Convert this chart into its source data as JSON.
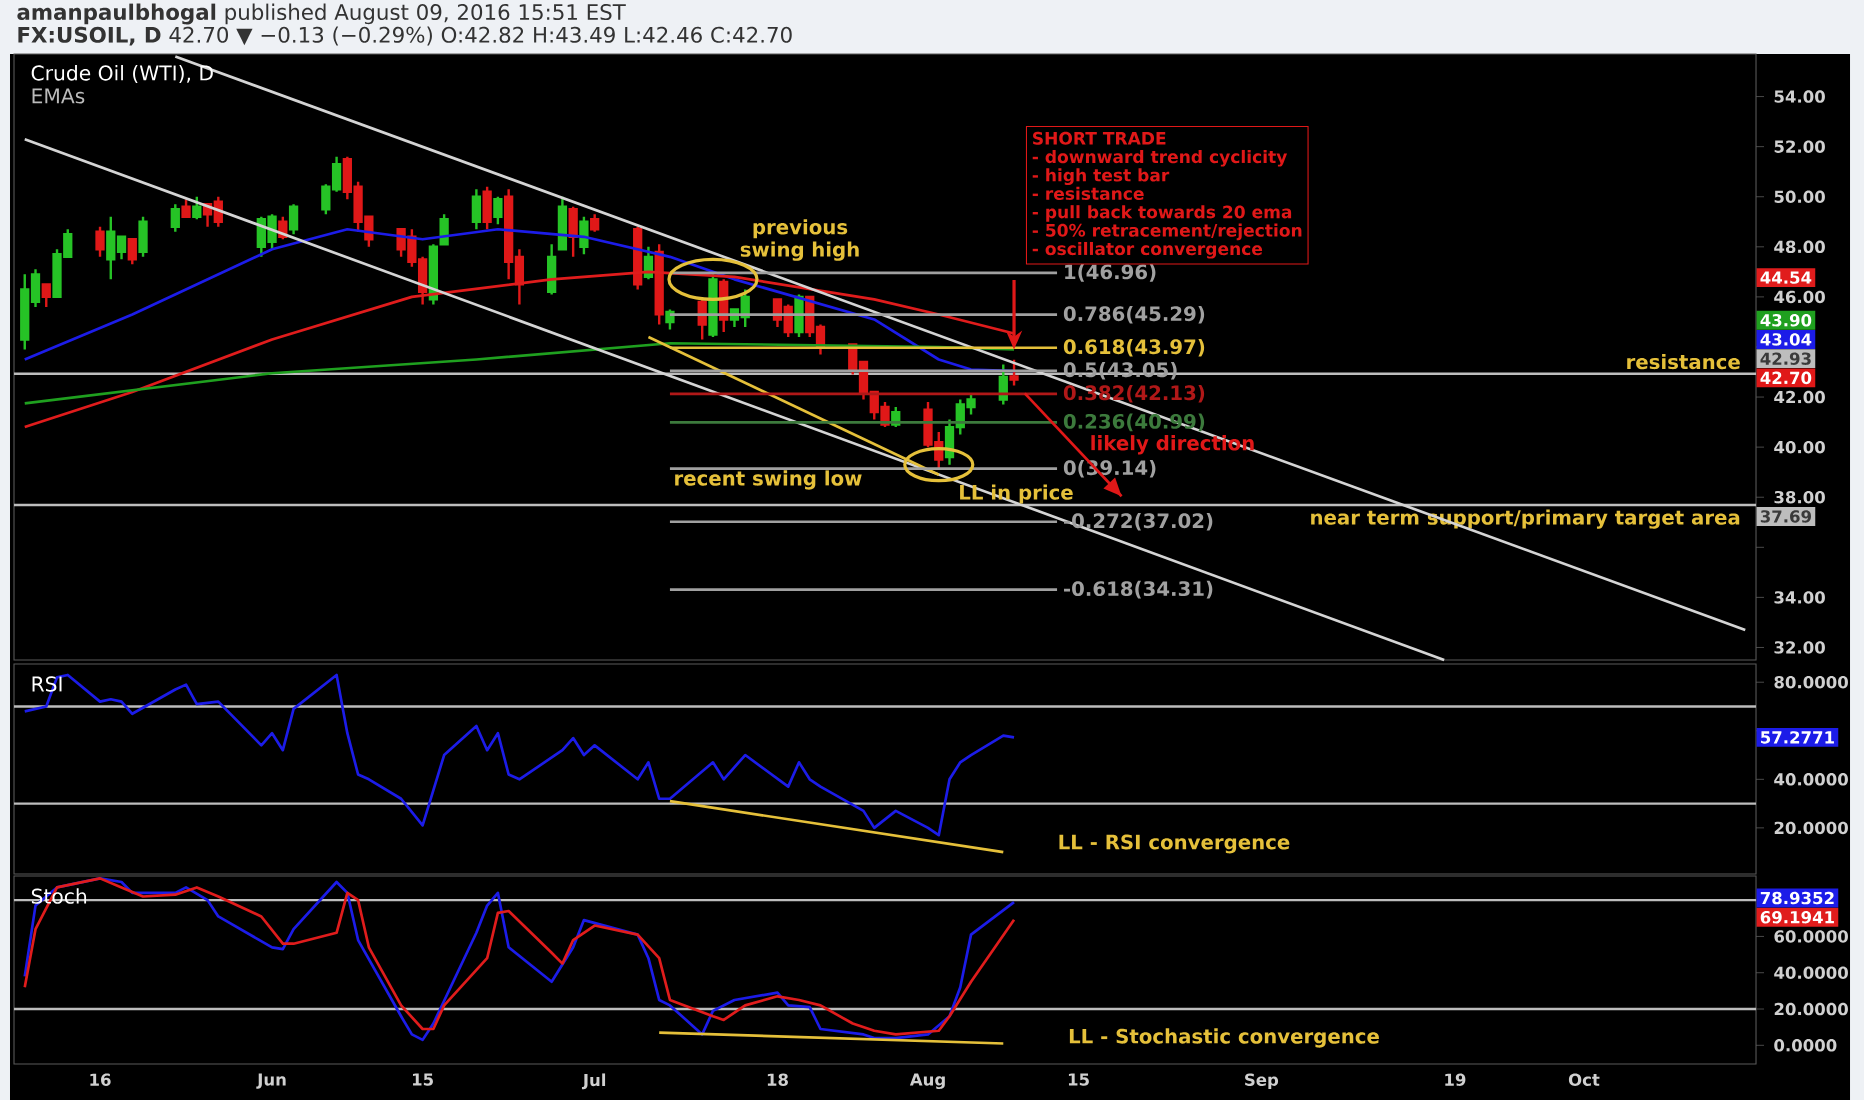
{
  "chart_data": [
    {
      "type": "candlestick",
      "title": "Crude Oil (WTI), D",
      "subtitle": "EMAs",
      "xlim": [
        "2016-05-08",
        "2016-10-17"
      ],
      "ylim": [
        31.5,
        55.7
      ],
      "tick_labels": "y",
      "yticks": [
        {
          "value": 32,
          "label": "32.00"
        },
        {
          "value": 34,
          "label": "34.00"
        },
        {
          "value": 36,
          "label": null
        },
        {
          "value": 38,
          "label": "38.00"
        },
        {
          "value": 40,
          "label": "40.00"
        },
        {
          "value": 42,
          "label": "42.00"
        },
        {
          "value": 44,
          "label": null
        },
        {
          "value": 46,
          "label": "46.00"
        },
        {
          "value": 48,
          "label": "48.00"
        },
        {
          "value": 50,
          "label": "50.00"
        },
        {
          "value": 52,
          "label": "52.00"
        },
        {
          "value": 54,
          "label": "54.00"
        }
      ],
      "series": [
        {
          "type": "candlestick",
          "x": [
            "2016-05-09",
            "2016-05-10",
            "2016-05-11",
            "2016-05-12",
            "2016-05-13",
            "2016-05-16",
            "2016-05-17",
            "2016-05-18",
            "2016-05-19",
            "2016-05-20",
            "2016-05-23",
            "2016-05-24",
            "2016-05-25",
            "2016-05-26",
            "2016-05-27",
            "2016-05-31",
            "2016-06-01",
            "2016-06-02",
            "2016-06-03",
            "2016-06-06",
            "2016-06-07",
            "2016-06-08",
            "2016-06-09",
            "2016-06-10",
            "2016-06-13",
            "2016-06-14",
            "2016-06-15",
            "2016-06-16",
            "2016-06-17",
            "2016-06-20",
            "2016-06-21",
            "2016-06-22",
            "2016-06-23",
            "2016-06-24",
            "2016-06-27",
            "2016-06-28",
            "2016-06-29",
            "2016-06-30",
            "2016-07-01",
            "2016-07-05",
            "2016-07-06",
            "2016-07-07",
            "2016-07-08",
            "2016-07-11",
            "2016-07-12",
            "2016-07-13",
            "2016-07-14",
            "2016-07-15",
            "2016-07-18",
            "2016-07-19",
            "2016-07-20",
            "2016-07-21",
            "2016-07-22",
            "2016-07-25",
            "2016-07-26",
            "2016-07-27",
            "2016-07-28",
            "2016-07-29",
            "2016-08-01",
            "2016-08-02",
            "2016-08-03",
            "2016-08-04",
            "2016-08-05",
            "2016-08-08",
            "2016-08-09"
          ],
          "ohlc": [
            [
              44.3,
              46.9,
              43.9,
              46.3
            ],
            [
              45.8,
              47.1,
              45.6,
              46.9
            ],
            [
              46.5,
              46.5,
              45.6,
              46.0
            ],
            [
              46.0,
              47.9,
              46.0,
              47.7
            ],
            [
              47.6,
              48.7,
              47.6,
              48.5
            ],
            [
              48.6,
              48.8,
              47.6,
              47.9
            ],
            [
              47.5,
              49.2,
              46.7,
              48.6
            ],
            [
              47.8,
              48.4,
              47.5,
              48.4
            ],
            [
              48.3,
              48.3,
              47.3,
              47.5
            ],
            [
              47.8,
              49.2,
              47.6,
              49.0
            ],
            [
              48.8,
              49.7,
              48.6,
              49.5
            ],
            [
              49.6,
              49.9,
              49.2,
              49.2
            ],
            [
              49.2,
              50.0,
              49.1,
              49.6
            ],
            [
              49.7,
              49.7,
              48.8,
              49.3
            ],
            [
              49.8,
              50.0,
              48.8,
              49.0
            ],
            [
              48.0,
              49.2,
              47.6,
              49.1
            ],
            [
              48.2,
              49.3,
              47.9,
              49.2
            ],
            [
              49.0,
              49.2,
              48.3,
              48.4
            ],
            [
              48.7,
              49.7,
              48.5,
              49.6
            ],
            [
              49.5,
              50.5,
              49.3,
              50.4
            ],
            [
              50.3,
              51.6,
              50.2,
              51.3
            ],
            [
              51.5,
              51.6,
              49.9,
              50.2
            ],
            [
              50.4,
              50.6,
              48.6,
              49.0
            ],
            [
              49.2,
              49.2,
              48.0,
              48.3
            ],
            [
              48.7,
              48.7,
              47.6,
              47.9
            ],
            [
              48.4,
              48.7,
              47.2,
              47.4
            ],
            [
              47.5,
              47.6,
              45.7,
              46.2
            ],
            [
              45.9,
              48.1,
              45.7,
              48.0
            ],
            [
              48.1,
              49.3,
              48.1,
              49.1
            ],
            [
              49.0,
              50.3,
              48.7,
              50.0
            ],
            [
              50.2,
              50.4,
              48.7,
              49.0
            ],
            [
              49.2,
              50.0,
              48.9,
              49.9
            ],
            [
              50.0,
              50.3,
              46.7,
              47.4
            ],
            [
              47.6,
              47.9,
              45.7,
              46.5
            ],
            [
              46.2,
              48.1,
              46.1,
              47.6
            ],
            [
              47.9,
              50.0,
              47.9,
              49.6
            ],
            [
              49.5,
              49.6,
              47.6,
              48.4
            ],
            [
              48.0,
              49.2,
              47.7,
              49.0
            ],
            [
              49.1,
              49.3,
              48.6,
              48.7
            ],
            [
              48.7,
              48.8,
              46.3,
              46.5
            ],
            [
              46.8,
              48.0,
              46.7,
              47.6
            ],
            [
              47.8,
              48.1,
              44.9,
              45.3
            ],
            [
              45.0,
              45.5,
              44.7,
              45.4
            ],
            [
              45.8,
              45.9,
              44.3,
              44.9
            ],
            [
              44.5,
              46.9,
              44.4,
              46.7
            ],
            [
              46.6,
              46.7,
              44.6,
              45.1
            ],
            [
              45.1,
              45.5,
              44.8,
              45.5
            ],
            [
              45.2,
              46.3,
              44.8,
              46.0
            ],
            [
              45.9,
              45.9,
              44.8,
              45.1
            ],
            [
              45.6,
              45.7,
              44.4,
              44.6
            ],
            [
              44.6,
              46.1,
              44.4,
              46.0
            ],
            [
              46.0,
              46.0,
              44.4,
              44.6
            ],
            [
              44.8,
              44.9,
              43.7,
              44.0
            ],
            [
              44.1,
              44.1,
              42.9,
              43.1
            ],
            [
              43.4,
              43.4,
              41.9,
              42.2
            ],
            [
              42.2,
              42.2,
              41.1,
              41.4
            ],
            [
              41.6,
              41.8,
              40.8,
              40.9
            ],
            [
              40.9,
              41.6,
              40.8,
              41.4
            ],
            [
              41.5,
              41.8,
              40.0,
              40.1
            ],
            [
              40.2,
              40.6,
              39.14,
              39.5
            ],
            [
              39.6,
              41.1,
              39.3,
              40.8
            ],
            [
              40.8,
              41.9,
              40.5,
              41.7
            ],
            [
              41.6,
              42.1,
              41.3,
              41.9
            ],
            [
              41.9,
              43.3,
              41.7,
              42.8
            ],
            [
              42.82,
              43.49,
              42.46,
              42.7
            ]
          ],
          "colors": [
            "#26c326",
            "#26c326",
            "#e01818",
            "#26c326",
            "#26c326",
            "#e01818",
            "#26c326",
            "#26c326",
            "#e01818",
            "#26c326",
            "#26c326",
            "#e01818",
            "#26c326",
            "#e01818",
            "#e01818",
            "#26c326",
            "#26c326",
            "#e01818",
            "#26c326",
            "#26c326",
            "#26c326",
            "#e01818",
            "#e01818",
            "#e01818",
            "#e01818",
            "#e01818",
            "#e01818",
            "#26c326",
            "#26c326",
            "#26c326",
            "#e01818",
            "#26c326",
            "#e01818",
            "#e01818",
            "#26c326",
            "#26c326",
            "#e01818",
            "#26c326",
            "#e01818",
            "#e01818",
            "#26c326",
            "#e01818",
            "#26c326",
            "#e01818",
            "#26c326",
            "#e01818",
            "#26c326",
            "#26c326",
            "#e01818",
            "#e01818",
            "#26c326",
            "#e01818",
            "#e01818",
            "#e01818",
            "#e01818",
            "#e01818",
            "#e01818",
            "#26c326",
            "#e01818",
            "#e01818",
            "#26c326",
            "#26c326",
            "#26c326",
            "#26c326",
            "#e01818"
          ]
        },
        {
          "type": "line",
          "color": "#1c1ce8",
          "x": [
            "2016-05-09",
            "2016-05-19",
            "2016-06-01",
            "2016-06-08",
            "2016-06-15",
            "2016-06-22",
            "2016-06-30",
            "2016-07-08",
            "2016-07-14",
            "2016-07-27",
            "2016-08-02",
            "2016-08-05",
            "2016-08-09"
          ],
          "values": [
            43.5,
            45.3,
            47.9,
            48.7,
            48.3,
            48.7,
            48.4,
            47.6,
            46.7,
            45.1,
            43.5,
            43.1,
            43.04
          ]
        },
        {
          "type": "line",
          "color": "#e01c1c",
          "x": [
            "2016-05-09",
            "2016-05-19",
            "2016-06-01",
            "2016-06-14",
            "2016-06-27",
            "2016-07-06",
            "2016-07-14",
            "2016-07-27",
            "2016-08-02",
            "2016-08-09"
          ],
          "values": [
            40.8,
            42.2,
            44.3,
            46.0,
            46.7,
            47.0,
            46.8,
            45.9,
            45.3,
            44.54
          ]
        },
        {
          "type": "line",
          "color": "#1fa01f",
          "x": [
            "2016-05-09",
            "2016-06-01",
            "2016-06-20",
            "2016-07-08",
            "2016-08-02",
            "2016-08-09"
          ],
          "values": [
            41.75,
            42.95,
            43.5,
            44.15,
            44.0,
            43.9
          ]
        },
        {
          "type": "line",
          "color": "#d4d4d4",
          "x": [
            "2016-05-23",
            "2016-10-16"
          ],
          "values": [
            55.6,
            32.7
          ]
        },
        {
          "type": "line",
          "color": "#d4d4d4",
          "x": [
            "2016-05-09",
            "2016-09-18"
          ],
          "values": [
            52.3,
            31.5
          ]
        },
        {
          "type": "line",
          "color": "#e5c03a",
          "x": [
            "2016-07-06",
            "2016-08-02"
          ],
          "values": [
            44.4,
            38.9
          ]
        },
        {
          "type": "line",
          "name": "1(46.96)",
          "color": "#a0a0a0",
          "x": [
            "2016-07-08",
            "2016-08-13"
          ],
          "values": [
            46.96,
            46.96
          ]
        },
        {
          "type": "line",
          "name": "0.786(45.29)",
          "color": "#a0a0a0",
          "x": [
            "2016-07-08",
            "2016-08-13"
          ],
          "values": [
            45.29,
            45.29
          ]
        },
        {
          "type": "line",
          "name": "0.618(43.97)",
          "color": "#e5c03a",
          "x": [
            "2016-07-08",
            "2016-08-13"
          ],
          "values": [
            43.97,
            43.97
          ]
        },
        {
          "type": "line",
          "name": "0.5(43.05)",
          "color": "#a0a0a0",
          "x": [
            "2016-07-08",
            "2016-08-13"
          ],
          "values": [
            43.05,
            43.05
          ]
        },
        {
          "type": "line",
          "name": "0.382(42.13)",
          "color": "#b01818",
          "x": [
            "2016-07-08",
            "2016-08-13"
          ],
          "values": [
            42.13,
            42.13
          ]
        },
        {
          "type": "line",
          "name": "0.236(40.99)",
          "color": "#3c7a3c",
          "x": [
            "2016-07-08",
            "2016-08-13"
          ],
          "values": [
            40.99,
            40.99
          ]
        },
        {
          "type": "line",
          "name": "0(39.14)",
          "color": "#a0a0a0",
          "x": [
            "2016-07-08",
            "2016-08-13"
          ],
          "values": [
            39.14,
            39.14
          ]
        },
        {
          "type": "line",
          "name": "-0.272(37.02)",
          "color": "#a0a0a0",
          "x": [
            "2016-07-08",
            "2016-08-13"
          ],
          "values": [
            37.02,
            37.02
          ]
        },
        {
          "type": "line",
          "name": "-0.618(34.31)",
          "color": "#a0a0a0",
          "x": [
            "2016-07-08",
            "2016-08-13"
          ],
          "values": [
            34.31,
            34.31
          ]
        },
        {
          "type": "line",
          "name": "likely direction",
          "color": "#e01818",
          "x": [
            "2016-08-10",
            "2016-08-19"
          ],
          "values": [
            42.15,
            38.04
          ]
        }
      ],
      "ref_lines": [
        {
          "axis": "y",
          "value": 42.93,
          "label": "resistance",
          "color": "#bdbdbd"
        },
        {
          "axis": "y",
          "value": 37.69,
          "label": "near term support/primary target area",
          "color": "#bdbdbd"
        }
      ],
      "annotations": [
        "**amanpaulbhogal** published August 09, 2016 15:51 EST",
        "**FX:USOIL, D** 42.70 ▼ −0.13 (−0.29%) O:42.82 H:43.49 L:42.46 C:42.70",
        "SHORT TRADE",
        "- downward trend cyclicity",
        "- high test bar",
        "- resistance",
        "- pull back towards 20 ema",
        "- 50% retracement/rejection",
        "- oscillator convergence",
        "previous swing high",
        "recent swing low",
        "LL in price",
        "44.54",
        "43.90",
        "43.04",
        "42.70",
        {
          "text": "42.93",
          "x": "2016-10-17",
          "y": 42.93
        },
        {
          "text": "37.69",
          "x": "2016-10-17",
          "y": 37.69
        }
      ]
    },
    {
      "type": "line",
      "title": "RSI",
      "xlim": [
        "2016-05-08",
        "2016-10-17"
      ],
      "ylim": [
        1,
        87.5
      ],
      "tick_labels": "y",
      "yticks": [
        {
          "value": 20,
          "label": "20.0000"
        },
        {
          "value": 40,
          "label": "40.0000"
        },
        {
          "value": 60,
          "label": null
        },
        {
          "value": 80,
          "label": "80.0000"
        }
      ],
      "series": [
        {
          "color": "#1c1ce8",
          "x": [
            "2016-05-09",
            "2016-05-11",
            "2016-05-12",
            "2016-05-13",
            "2016-05-16",
            "2016-05-17",
            "2016-05-18",
            "2016-05-19",
            "2016-05-23",
            "2016-05-24",
            "2016-05-25",
            "2016-05-27",
            "2016-05-31",
            "2016-06-01",
            "2016-06-02",
            "2016-06-03",
            "2016-06-07",
            "2016-06-08",
            "2016-06-09",
            "2016-06-10",
            "2016-06-13",
            "2016-06-15",
            "2016-06-17",
            "2016-06-20",
            "2016-06-21",
            "2016-06-22",
            "2016-06-23",
            "2016-06-24",
            "2016-06-28",
            "2016-06-29",
            "2016-06-30",
            "2016-07-01",
            "2016-07-05",
            "2016-07-06",
            "2016-07-07",
            "2016-07-08",
            "2016-07-12",
            "2016-07-13",
            "2016-07-15",
            "2016-07-19",
            "2016-07-20",
            "2016-07-21",
            "2016-07-22",
            "2016-07-26",
            "2016-07-27",
            "2016-07-29",
            "2016-08-01",
            "2016-08-02",
            "2016-08-03",
            "2016-08-04",
            "2016-08-05",
            "2016-08-08",
            "2016-08-09"
          ],
          "values": [
            68,
            70,
            82,
            83,
            72,
            73,
            72,
            67,
            77,
            79,
            71,
            72,
            54,
            59,
            52,
            69,
            83,
            59,
            42,
            40,
            32,
            21,
            50,
            62,
            52,
            59,
            42,
            40,
            52,
            57,
            50,
            54,
            40,
            47,
            32,
            32,
            47,
            40,
            50,
            37,
            47,
            40,
            37,
            27,
            20,
            27,
            20,
            17,
            40,
            47,
            50,
            58,
            57.2771
          ]
        },
        {
          "color": "#e5c03a",
          "x": [
            "2016-07-08",
            "2016-08-08"
          ],
          "values": [
            31,
            10
          ]
        }
      ],
      "ref_lines": [
        {
          "axis": "y",
          "value": 70,
          "color": "#bdbdbd"
        },
        {
          "axis": "y",
          "value": 30,
          "color": "#bdbdbd"
        }
      ],
      "annotations": [
        "LL - RSI convergence",
        "57.2771"
      ]
    },
    {
      "type": "line",
      "title": "Stoch",
      "xlim": [
        "2016-05-08",
        "2016-10-17"
      ],
      "ylim": [
        -10.3,
        93.3
      ],
      "xticks": [
        {
          "value": "2016-05-16",
          "label": "16"
        },
        {
          "value": "2016-06-01",
          "label": "Jun"
        },
        {
          "value": "2016-06-15",
          "label": "15"
        },
        {
          "value": "2016-07-01",
          "label": "Jul"
        },
        {
          "value": "2016-07-18",
          "label": "18"
        },
        {
          "value": "2016-08-01",
          "label": "Aug"
        },
        {
          "value": "2016-08-15",
          "label": "15"
        },
        {
          "value": "2016-09-01",
          "label": "Sep"
        },
        {
          "value": "2016-09-19",
          "label": "19"
        },
        {
          "value": "2016-10-01",
          "label": "Oct"
        }
      ],
      "yticks": [
        {
          "value": 0,
          "label": "0.0000"
        },
        {
          "value": 20,
          "label": "20.0000"
        },
        {
          "value": 40,
          "label": "40.0000"
        },
        {
          "value": 60,
          "label": "60.0000"
        },
        {
          "value": 80,
          "label": null
        }
      ],
      "series": [
        {
          "color": "#1c1ce8",
          "x": [
            "2016-05-09",
            "2016-05-10",
            "2016-05-12",
            "2016-05-16",
            "2016-05-18",
            "2016-05-19",
            "2016-05-23",
            "2016-05-24",
            "2016-05-26",
            "2016-05-27",
            "2016-06-01",
            "2016-06-02",
            "2016-06-03",
            "2016-06-07",
            "2016-06-08",
            "2016-06-09",
            "2016-06-13",
            "2016-06-14",
            "2016-06-15",
            "2016-06-16",
            "2016-06-20",
            "2016-06-21",
            "2016-06-22",
            "2016-06-23",
            "2016-06-27",
            "2016-06-29",
            "2016-06-30",
            "2016-07-05",
            "2016-07-06",
            "2016-07-07",
            "2016-07-08",
            "2016-07-11",
            "2016-07-12",
            "2016-07-14",
            "2016-07-18",
            "2016-07-19",
            "2016-07-21",
            "2016-07-22",
            "2016-07-26",
            "2016-07-27",
            "2016-07-29",
            "2016-08-01",
            "2016-08-03",
            "2016-08-04",
            "2016-08-05",
            "2016-08-09"
          ],
          "values": [
            38,
            77,
            87,
            92,
            90,
            84,
            84,
            87,
            80,
            71,
            54,
            53,
            64,
            90,
            84,
            58,
            16,
            6,
            3,
            12,
            62,
            77,
            84,
            54,
            35,
            54,
            69,
            61,
            48,
            25,
            22,
            6,
            19,
            25,
            29,
            22,
            21,
            9,
            6,
            4,
            4,
            6,
            16,
            32,
            61,
            78.9352
          ]
        },
        {
          "color": "#e01c1c",
          "x": [
            "2016-05-09",
            "2016-05-10",
            "2016-05-12",
            "2016-05-16",
            "2016-05-18",
            "2016-05-20",
            "2016-05-23",
            "2016-05-25",
            "2016-05-27",
            "2016-05-31",
            "2016-06-02",
            "2016-06-03",
            "2016-06-07",
            "2016-06-08",
            "2016-06-09",
            "2016-06-10",
            "2016-06-13",
            "2016-06-15",
            "2016-06-16",
            "2016-06-17",
            "2016-06-21",
            "2016-06-22",
            "2016-06-23",
            "2016-06-27",
            "2016-06-28",
            "2016-06-29",
            "2016-07-01",
            "2016-07-05",
            "2016-07-07",
            "2016-07-08",
            "2016-07-12",
            "2016-07-13",
            "2016-07-15",
            "2016-07-18",
            "2016-07-20",
            "2016-07-22",
            "2016-07-25",
            "2016-07-27",
            "2016-07-29",
            "2016-08-02",
            "2016-08-03",
            "2016-08-05",
            "2016-08-09"
          ],
          "values": [
            32,
            64,
            87,
            92,
            87,
            82,
            83,
            87,
            82,
            71,
            56,
            56,
            62,
            84,
            80,
            54,
            22,
            9,
            9,
            22,
            48,
            73,
            74,
            51,
            45,
            58,
            66,
            61,
            48,
            25,
            16,
            14,
            22,
            27,
            25,
            22,
            12,
            8,
            6,
            8,
            16,
            35,
            69.1941
          ]
        },
        {
          "color": "#e5c03a",
          "x": [
            "2016-07-07",
            "2016-08-08"
          ],
          "values": [
            7,
            1
          ]
        }
      ],
      "ref_lines": [
        {
          "axis": "y",
          "value": 80,
          "color": "#bdbdbd"
        },
        {
          "axis": "y",
          "value": 20,
          "color": "#bdbdbd"
        }
      ],
      "annotations": [
        "LL - Stochastic convergence",
        "78.9352",
        "69.1941"
      ]
    }
  ]
}
